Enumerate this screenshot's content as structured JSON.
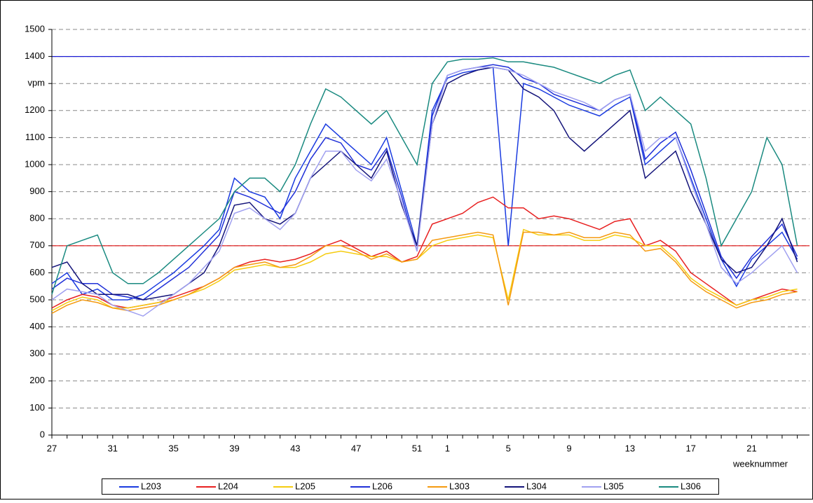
{
  "chart_data": {
    "type": "line",
    "x_label": "weeknummer",
    "categories": [
      "27",
      null,
      null,
      null,
      "31",
      null,
      null,
      null,
      "35",
      null,
      null,
      null,
      "39",
      null,
      null,
      null,
      "43",
      null,
      null,
      null,
      "47",
      null,
      null,
      null,
      "51",
      null,
      "1",
      null,
      null,
      null,
      "5",
      null,
      null,
      null,
      "9",
      null,
      null,
      null,
      "13",
      null,
      null,
      null,
      "17",
      null,
      null,
      null,
      "21",
      null,
      null,
      null
    ],
    "ylim": [
      0,
      1500
    ],
    "yticks": [
      0,
      100,
      200,
      300,
      400,
      500,
      600,
      700,
      800,
      900,
      1000,
      1100,
      1200,
      {
        "value": 1300,
        "label": "vpm"
      },
      1400,
      1500
    ],
    "grid": true,
    "reference_lines": [
      {
        "value": 1400,
        "color": "#1c1cd4"
      },
      {
        "value": 700,
        "color": "#e01010"
      }
    ],
    "legend": "bottom",
    "series": [
      {
        "name": "L203",
        "color": "#1a3be0",
        "values": [
          560,
          600,
          520,
          540,
          500,
          500,
          520,
          560,
          600,
          650,
          700,
          760,
          950,
          900,
          880,
          800,
          950,
          1050,
          1150,
          1100,
          1050,
          1000,
          1100,
          900,
          700,
          1200,
          1320,
          1340,
          1350,
          1360,
          700,
          1300,
          1280,
          1250,
          1220,
          1200,
          1180,
          1220,
          1250,
          1000,
          1050,
          1100,
          950,
          800,
          650,
          550,
          650,
          700,
          750,
          650
        ]
      },
      {
        "name": "L204",
        "color": "#e82020",
        "values": [
          470,
          500,
          520,
          510,
          480,
          470,
          480,
          490,
          510,
          530,
          550,
          580,
          620,
          640,
          650,
          640,
          650,
          670,
          700,
          720,
          690,
          660,
          680,
          640,
          660,
          780,
          800,
          820,
          860,
          880,
          840,
          840,
          800,
          810,
          800,
          780,
          760,
          790,
          800,
          700,
          720,
          680,
          600,
          560,
          520,
          480,
          500,
          520,
          540,
          530
        ]
      },
      {
        "name": "L205",
        "color": "#f5cc10",
        "values": [
          460,
          490,
          510,
          500,
          470,
          470,
          480,
          490,
          500,
          520,
          540,
          570,
          610,
          620,
          630,
          620,
          620,
          640,
          670,
          680,
          670,
          660,
          660,
          640,
          650,
          700,
          720,
          730,
          740,
          730,
          500,
          760,
          740,
          740,
          740,
          720,
          720,
          740,
          730,
          700,
          700,
          650,
          580,
          540,
          510,
          480,
          500,
          510,
          530,
          540
        ]
      },
      {
        "name": "L206",
        "color": "#2030d8",
        "values": [
          540,
          580,
          560,
          560,
          520,
          510,
          500,
          540,
          580,
          620,
          680,
          740,
          900,
          880,
          850,
          820,
          900,
          1020,
          1100,
          1080,
          1000,
          980,
          1060,
          880,
          680,
          1180,
          1330,
          1350,
          1360,
          1370,
          1360,
          1320,
          1300,
          1260,
          1240,
          1220,
          1200,
          1240,
          1260,
          1020,
          1080,
          1120,
          980,
          820,
          660,
          580,
          660,
          720,
          780,
          660
        ]
      },
      {
        "name": "L303",
        "color": "#f59a10",
        "values": [
          450,
          480,
          500,
          490,
          470,
          460,
          470,
          480,
          500,
          520,
          550,
          580,
          620,
          630,
          640,
          620,
          630,
          660,
          700,
          700,
          680,
          650,
          670,
          640,
          650,
          720,
          730,
          740,
          750,
          740,
          480,
          750,
          750,
          740,
          750,
          730,
          730,
          750,
          740,
          680,
          690,
          640,
          570,
          530,
          500,
          470,
          490,
          500,
          520,
          530
        ]
      },
      {
        "name": "L304",
        "color": "#14147a",
        "values": [
          620,
          640,
          560,
          520,
          520,
          520,
          500,
          510,
          520,
          560,
          600,
          700,
          850,
          860,
          800,
          780,
          820,
          950,
          1000,
          1050,
          1000,
          950,
          1050,
          850,
          700,
          1150,
          1300,
          1330,
          1350,
          1360,
          1350,
          1280,
          1250,
          1200,
          1100,
          1050,
          1100,
          1150,
          1200,
          950,
          1000,
          1050,
          900,
          780,
          650,
          600,
          620,
          700,
          800,
          640
        ]
      },
      {
        "name": "L305",
        "color": "#a0a0f0",
        "values": [
          500,
          540,
          530,
          520,
          480,
          460,
          440,
          480,
          520,
          560,
          620,
          680,
          820,
          840,
          800,
          760,
          820,
          950,
          1050,
          1050,
          980,
          940,
          1020,
          860,
          680,
          1150,
          1330,
          1350,
          1360,
          1360,
          1350,
          1330,
          1300,
          1270,
          1250,
          1230,
          1200,
          1240,
          1260,
          1050,
          1100,
          1100,
          940,
          780,
          620,
          560,
          600,
          650,
          700,
          600
        ]
      },
      {
        "name": "L306",
        "color": "#1a8a80",
        "values": [
          520,
          700,
          720,
          740,
          600,
          560,
          560,
          600,
          650,
          700,
          750,
          800,
          900,
          950,
          950,
          900,
          1000,
          1150,
          1280,
          1250,
          1200,
          1150,
          1200,
          1100,
          1000,
          1300,
          1380,
          1390,
          1390,
          1395,
          1380,
          1380,
          1370,
          1360,
          1340,
          1320,
          1300,
          1330,
          1350,
          1200,
          1250,
          1200,
          1150,
          950,
          700,
          800,
          900,
          1100,
          1000,
          700
        ]
      }
    ]
  }
}
